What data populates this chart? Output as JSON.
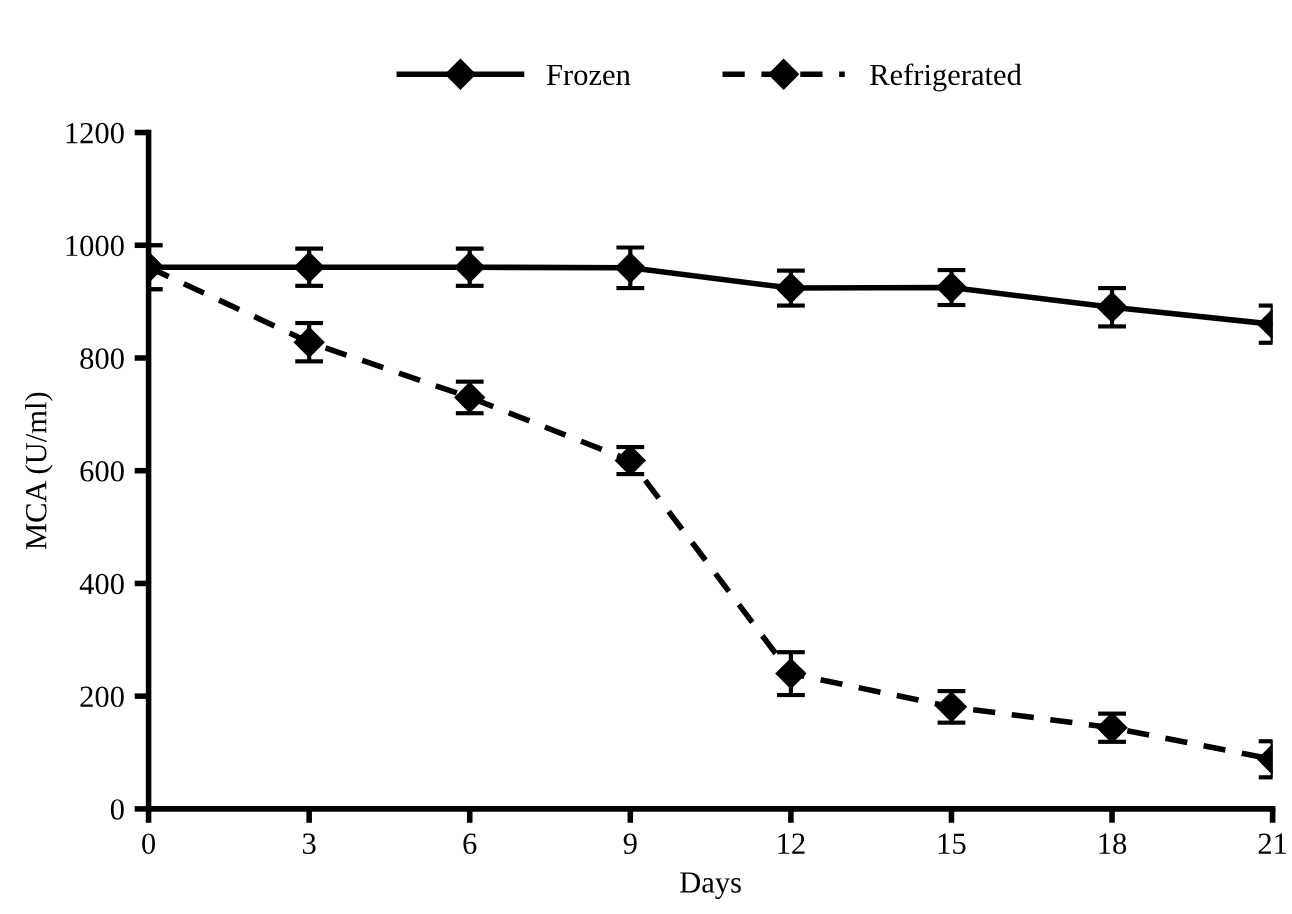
{
  "chart_data": {
    "type": "line",
    "xlabel": "Days",
    "ylabel": "MCA (U/ml)",
    "x": [
      0,
      3,
      6,
      9,
      12,
      15,
      18,
      21
    ],
    "series": [
      {
        "name": "Frozen",
        "color": "#000000",
        "line_style": "solid",
        "values": [
          961,
          961,
          961,
          960,
          924,
          925,
          890,
          860
        ],
        "errors": [
          39,
          33,
          33,
          36,
          31,
          31,
          34,
          33
        ]
      },
      {
        "name": "Refrigerated",
        "color": "#000000",
        "line_style": "dashed",
        "values": [
          961,
          828,
          730,
          618,
          240,
          181,
          144,
          88
        ],
        "errors": [
          39,
          34,
          28,
          24,
          38,
          28,
          25,
          32
        ]
      }
    ],
    "marker": "diamond",
    "xlim": [
      0,
      21
    ],
    "xticks": [
      0,
      3,
      6,
      9,
      12,
      15,
      18,
      21
    ],
    "ylim": [
      0,
      1200
    ],
    "yticks": [
      0,
      200,
      400,
      600,
      800,
      1000,
      1200
    ],
    "grid": false,
    "legend": "top"
  }
}
